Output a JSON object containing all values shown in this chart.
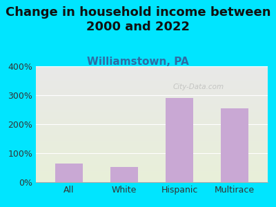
{
  "title": "Change in household income between\n2000 and 2022",
  "subtitle": "Williamstown, PA",
  "categories": [
    "All",
    "White",
    "Hispanic",
    "Multirace"
  ],
  "values": [
    65,
    52,
    290,
    255
  ],
  "bar_color": "#c9a8d4",
  "ylim": [
    0,
    400
  ],
  "yticks": [
    0,
    100,
    200,
    300,
    400
  ],
  "ytick_labels": [
    "0%",
    "100%",
    "200%",
    "300%",
    "400%"
  ],
  "bg_outer": "#00e5ff",
  "watermark": "City-Data.com",
  "title_fontsize": 13,
  "subtitle_fontsize": 11,
  "subtitle_color": "#2e6da4",
  "tick_label_fontsize": 9
}
